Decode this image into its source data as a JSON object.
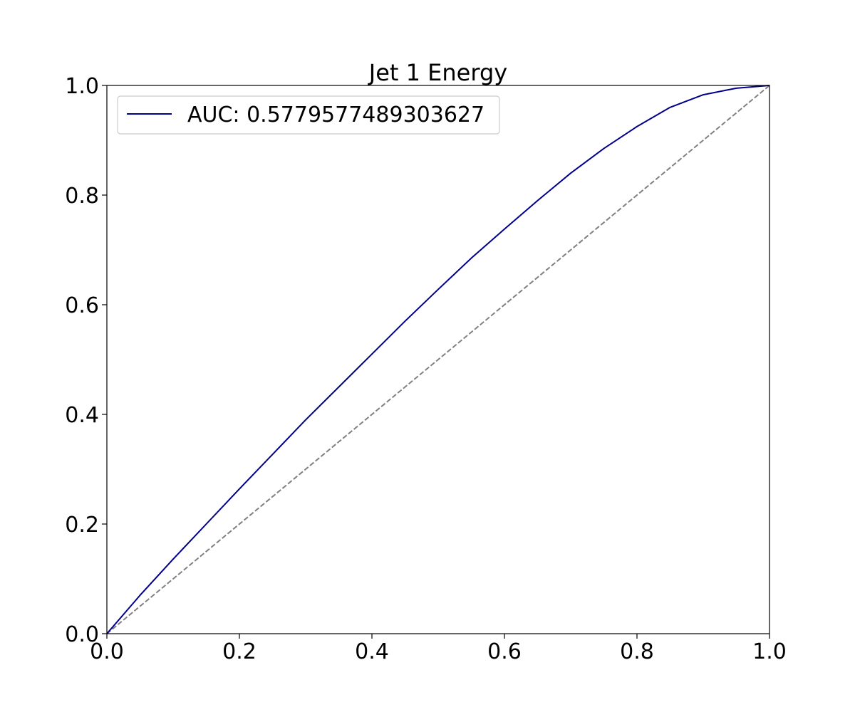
{
  "chart_data": {
    "type": "line",
    "title": "Jet 1 Energy",
    "xlabel": "",
    "ylabel": "",
    "xlim": [
      0.0,
      1.0
    ],
    "ylim": [
      0.0,
      1.0
    ],
    "x_ticks": [
      "0.0",
      "0.2",
      "0.4",
      "0.6",
      "0.8",
      "1.0"
    ],
    "y_ticks": [
      "0.0",
      "0.2",
      "0.4",
      "0.6",
      "0.8",
      "1.0"
    ],
    "grid": false,
    "legend_position": "top-left",
    "series": [
      {
        "name": "AUC: 0.5779577489303627",
        "color": "#00008b",
        "style": "solid",
        "x": [
          0.0,
          0.05,
          0.1,
          0.15,
          0.2,
          0.25,
          0.3,
          0.35,
          0.4,
          0.45,
          0.5,
          0.55,
          0.6,
          0.65,
          0.7,
          0.75,
          0.8,
          0.85,
          0.9,
          0.95,
          1.0
        ],
        "y": [
          0.0,
          0.07,
          0.136,
          0.2,
          0.264,
          0.327,
          0.39,
          0.45,
          0.51,
          0.57,
          0.628,
          0.685,
          0.738,
          0.79,
          0.84,
          0.885,
          0.925,
          0.96,
          0.983,
          0.995,
          1.0
        ]
      }
    ],
    "reference_line": {
      "x": [
        0.0,
        1.0
      ],
      "y": [
        0.0,
        1.0
      ],
      "color": "#808080",
      "style": "dashed"
    }
  }
}
